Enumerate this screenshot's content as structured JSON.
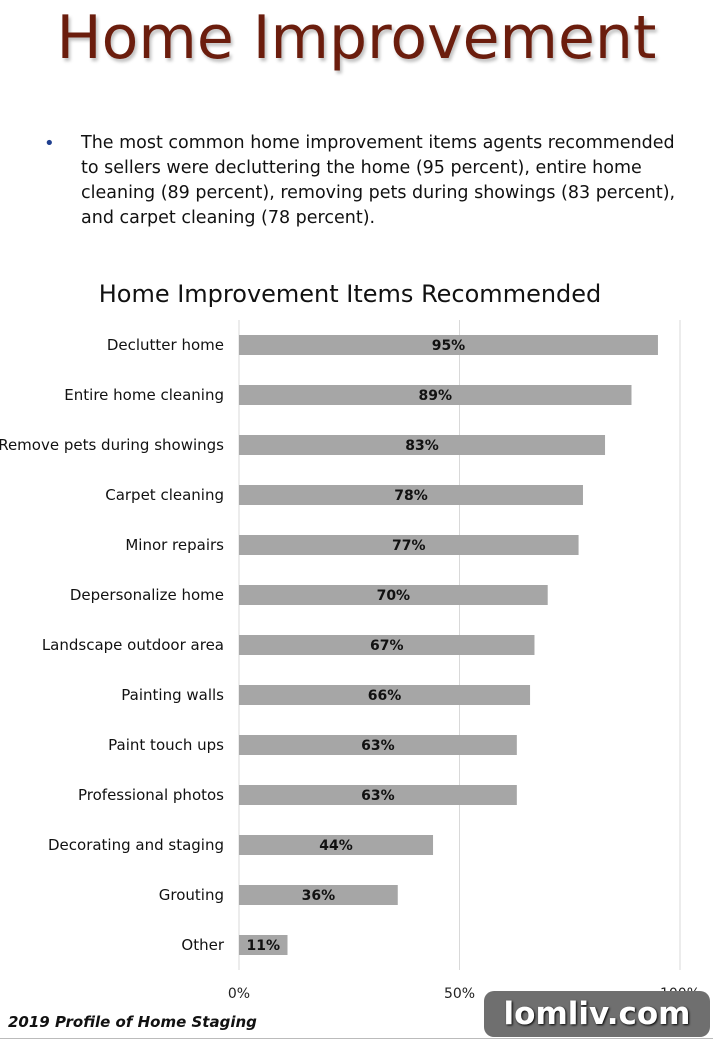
{
  "slide": {
    "title": "Home Improvement",
    "bullet": "The most common home improvement items agents recommended to sellers were decluttering the home (95 percent), entire home cleaning (89 percent), removing pets during showings (83 percent), and carpet cleaning (78 percent).",
    "footer": "2019 Profile of Home Staging",
    "watermark": "lomliv.com"
  },
  "colors": {
    "title": "#6b1d0d",
    "bar": "#a6a6a6",
    "grid": "#d9d9d9",
    "bullet": "#1f3f8f"
  },
  "chart_data": {
    "type": "bar",
    "orientation": "horizontal",
    "title": "Home Improvement Items Recommended",
    "categories": [
      "Declutter home",
      "Entire home cleaning",
      "Remove pets during showings",
      "Carpet cleaning",
      "Minor repairs",
      "Depersonalize home",
      "Landscape outdoor area",
      "Painting walls",
      "Paint touch ups",
      "Professional photos",
      "Decorating and staging",
      "Grouting",
      "Other"
    ],
    "values": [
      95,
      89,
      83,
      78,
      77,
      70,
      67,
      66,
      63,
      63,
      44,
      36,
      11
    ],
    "data_labels": [
      "95%",
      "89%",
      "83%",
      "78%",
      "77%",
      "70%",
      "67%",
      "66%",
      "63%",
      "63%",
      "44%",
      "36%",
      "11%"
    ],
    "xlim": [
      0,
      100
    ],
    "xticks": [
      0,
      50,
      100
    ],
    "xtick_labels": [
      "0%",
      "50%",
      "100%"
    ],
    "grid": true,
    "legend": false
  }
}
